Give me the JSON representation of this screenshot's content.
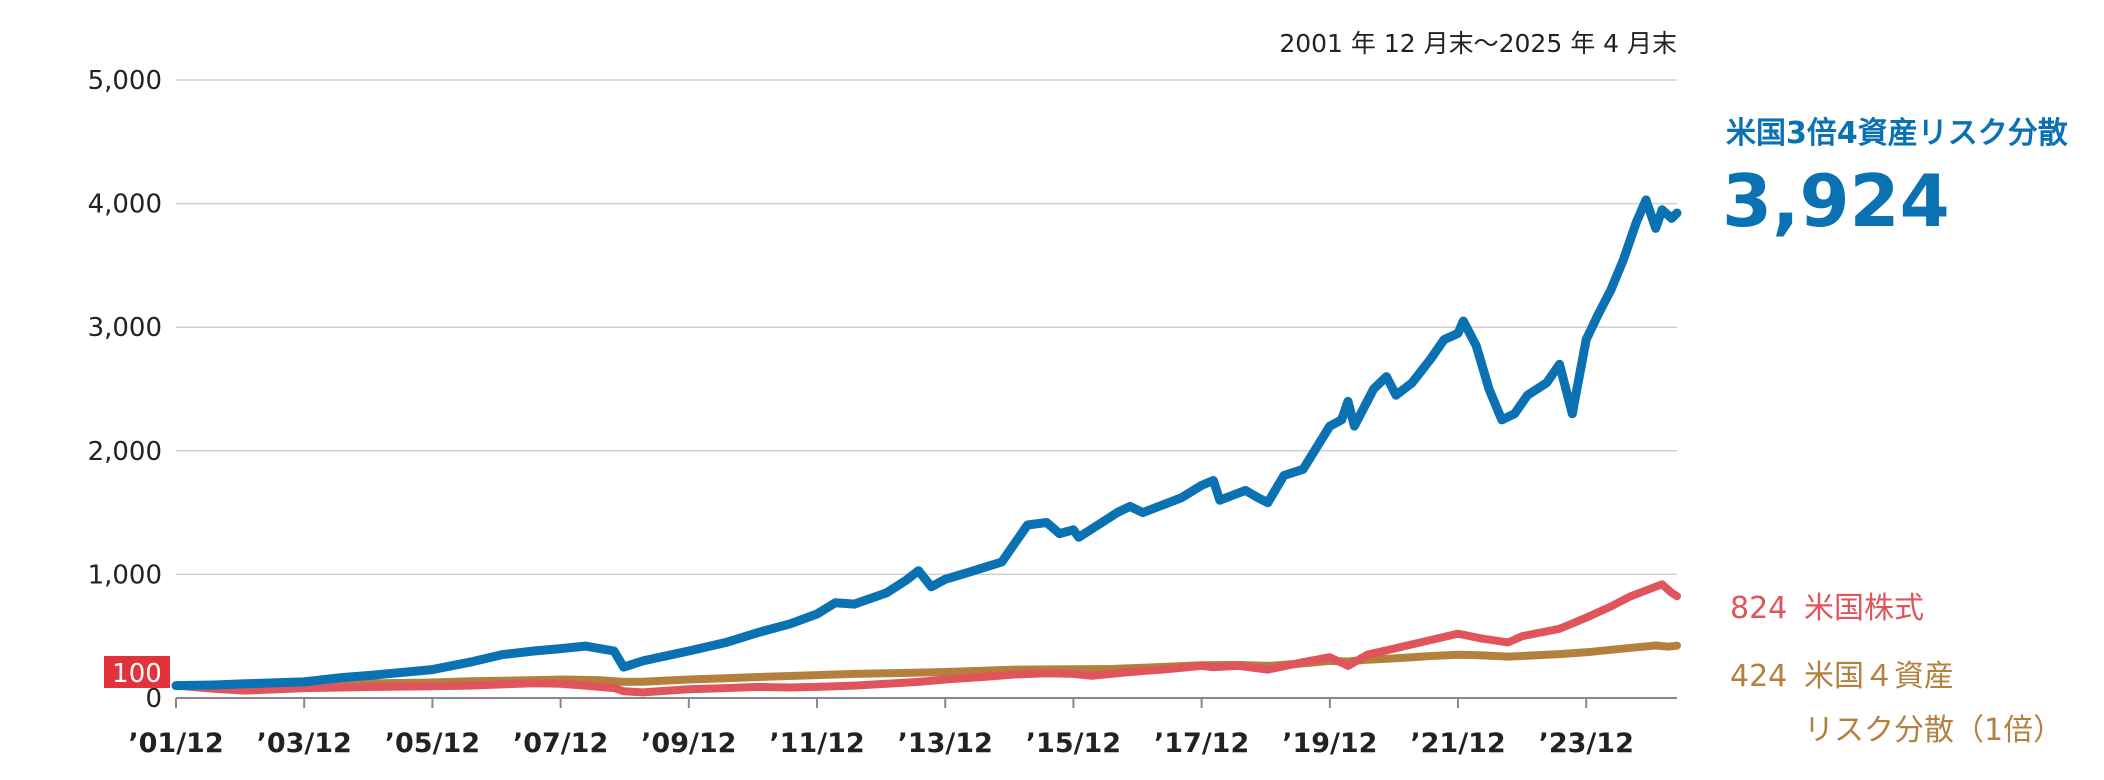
{
  "chart_data": {
    "type": "line",
    "period": "2001 年 12 月末～2025 年 4 月末",
    "ylim": [
      0,
      5000
    ],
    "yticks": [
      "0",
      "1,000",
      "2,000",
      "3,000",
      "4,000",
      "5,000"
    ],
    "ytick_values": [
      0,
      1000,
      2000,
      3000,
      4000,
      5000
    ],
    "base_label": "100",
    "xlim": [
      2001.917,
      2025.333
    ],
    "xticks": [
      "’01/12",
      "’03/12",
      "’05/12",
      "’07/12",
      "’09/12",
      "’11/12",
      "’13/12",
      "’15/12",
      "’17/12",
      "’19/12",
      "’21/12",
      "’23/12"
    ],
    "xtick_values": [
      2001.917,
      2003.917,
      2005.917,
      2007.917,
      2009.917,
      2011.917,
      2013.917,
      2015.917,
      2017.917,
      2019.917,
      2021.917,
      2023.917
    ],
    "series": [
      {
        "name": "米国3倍4資産リスク分散",
        "final_label": "3,924",
        "color": "#0a71b3",
        "points": [
          [
            2001.917,
            100
          ],
          [
            2002.5,
            105
          ],
          [
            2003.0,
            115
          ],
          [
            2003.917,
            130
          ],
          [
            2004.5,
            165
          ],
          [
            2005.0,
            185
          ],
          [
            2005.917,
            230
          ],
          [
            2006.5,
            290
          ],
          [
            2007.0,
            350
          ],
          [
            2007.5,
            380
          ],
          [
            2007.917,
            400
          ],
          [
            2008.3,
            420
          ],
          [
            2008.75,
            380
          ],
          [
            2008.9,
            250
          ],
          [
            2009.2,
            300
          ],
          [
            2009.917,
            380
          ],
          [
            2010.5,
            450
          ],
          [
            2011.0,
            530
          ],
          [
            2011.5,
            600
          ],
          [
            2011.917,
            680
          ],
          [
            2012.2,
            770
          ],
          [
            2012.5,
            760
          ],
          [
            2013.0,
            850
          ],
          [
            2013.3,
            950
          ],
          [
            2013.5,
            1030
          ],
          [
            2013.7,
            900
          ],
          [
            2013.917,
            960
          ],
          [
            2014.3,
            1020
          ],
          [
            2014.8,
            1100
          ],
          [
            2015.0,
            1250
          ],
          [
            2015.2,
            1400
          ],
          [
            2015.5,
            1420
          ],
          [
            2015.7,
            1330
          ],
          [
            2015.917,
            1360
          ],
          [
            2016.0,
            1300
          ],
          [
            2016.3,
            1400
          ],
          [
            2016.6,
            1500
          ],
          [
            2016.8,
            1550
          ],
          [
            2017.0,
            1500
          ],
          [
            2017.3,
            1560
          ],
          [
            2017.6,
            1620
          ],
          [
            2017.917,
            1720
          ],
          [
            2018.1,
            1760
          ],
          [
            2018.2,
            1600
          ],
          [
            2018.6,
            1680
          ],
          [
            2018.8,
            1620
          ],
          [
            2018.95,
            1580
          ],
          [
            2019.2,
            1800
          ],
          [
            2019.5,
            1850
          ],
          [
            2019.917,
            2200
          ],
          [
            2020.1,
            2250
          ],
          [
            2020.2,
            2400
          ],
          [
            2020.3,
            2200
          ],
          [
            2020.6,
            2500
          ],
          [
            2020.8,
            2600
          ],
          [
            2020.95,
            2450
          ],
          [
            2021.2,
            2550
          ],
          [
            2021.5,
            2750
          ],
          [
            2021.7,
            2900
          ],
          [
            2021.917,
            2950
          ],
          [
            2022.0,
            3050
          ],
          [
            2022.2,
            2850
          ],
          [
            2022.4,
            2500
          ],
          [
            2022.6,
            2250
          ],
          [
            2022.8,
            2300
          ],
          [
            2023.0,
            2450
          ],
          [
            2023.3,
            2550
          ],
          [
            2023.5,
            2700
          ],
          [
            2023.7,
            2300
          ],
          [
            2023.917,
            2900
          ],
          [
            2024.1,
            3100
          ],
          [
            2024.3,
            3300
          ],
          [
            2024.5,
            3550
          ],
          [
            2024.7,
            3850
          ],
          [
            2024.85,
            4030
          ],
          [
            2025.0,
            3800
          ],
          [
            2025.1,
            3950
          ],
          [
            2025.25,
            3880
          ],
          [
            2025.333,
            3924
          ]
        ]
      },
      {
        "name": "米国株式",
        "final_label": "824",
        "color": "#e0555b",
        "points": [
          [
            2001.917,
            100
          ],
          [
            2002.5,
            75
          ],
          [
            2003.0,
            60
          ],
          [
            2003.917,
            80
          ],
          [
            2004.5,
            85
          ],
          [
            2005.0,
            90
          ],
          [
            2005.917,
            95
          ],
          [
            2006.5,
            100
          ],
          [
            2007.0,
            110
          ],
          [
            2007.5,
            120
          ],
          [
            2007.917,
            115
          ],
          [
            2008.3,
            100
          ],
          [
            2008.75,
            80
          ],
          [
            2008.9,
            55
          ],
          [
            2009.2,
            45
          ],
          [
            2009.917,
            70
          ],
          [
            2010.5,
            80
          ],
          [
            2011.0,
            90
          ],
          [
            2011.5,
            85
          ],
          [
            2011.917,
            90
          ],
          [
            2012.5,
            100
          ],
          [
            2013.0,
            115
          ],
          [
            2013.5,
            130
          ],
          [
            2013.917,
            150
          ],
          [
            2014.5,
            170
          ],
          [
            2015.0,
            190
          ],
          [
            2015.5,
            200
          ],
          [
            2015.917,
            195
          ],
          [
            2016.2,
            180
          ],
          [
            2016.8,
            210
          ],
          [
            2017.3,
            230
          ],
          [
            2017.917,
            260
          ],
          [
            2018.1,
            250
          ],
          [
            2018.5,
            260
          ],
          [
            2018.95,
            230
          ],
          [
            2019.5,
            290
          ],
          [
            2019.917,
            330
          ],
          [
            2020.2,
            260
          ],
          [
            2020.5,
            350
          ],
          [
            2020.917,
            400
          ],
          [
            2021.5,
            470
          ],
          [
            2021.917,
            520
          ],
          [
            2022.3,
            480
          ],
          [
            2022.7,
            450
          ],
          [
            2022.917,
            500
          ],
          [
            2023.5,
            560
          ],
          [
            2023.917,
            650
          ],
          [
            2024.3,
            740
          ],
          [
            2024.6,
            820
          ],
          [
            2024.9,
            880
          ],
          [
            2025.1,
            920
          ],
          [
            2025.25,
            850
          ],
          [
            2025.333,
            824
          ]
        ]
      },
      {
        "name": "米国４資産リスク分散（1倍）",
        "name_lines": [
          "米国４資産",
          "リスク分散（1倍）"
        ],
        "final_label": "424",
        "color": "#b3813d",
        "points": [
          [
            2001.917,
            100
          ],
          [
            2002.5,
            102
          ],
          [
            2003.0,
            104
          ],
          [
            2003.917,
            110
          ],
          [
            2004.5,
            115
          ],
          [
            2005.0,
            118
          ],
          [
            2005.917,
            125
          ],
          [
            2006.5,
            135
          ],
          [
            2007.0,
            140
          ],
          [
            2007.5,
            145
          ],
          [
            2007.917,
            150
          ],
          [
            2008.5,
            145
          ],
          [
            2008.9,
            130
          ],
          [
            2009.2,
            132
          ],
          [
            2009.917,
            150
          ],
          [
            2010.5,
            160
          ],
          [
            2011.0,
            170
          ],
          [
            2011.917,
            185
          ],
          [
            2012.5,
            195
          ],
          [
            2013.0,
            200
          ],
          [
            2013.917,
            210
          ],
          [
            2014.5,
            220
          ],
          [
            2015.0,
            230
          ],
          [
            2015.917,
            232
          ],
          [
            2016.5,
            235
          ],
          [
            2017.0,
            245
          ],
          [
            2017.917,
            265
          ],
          [
            2018.5,
            268
          ],
          [
            2018.95,
            260
          ],
          [
            2019.5,
            280
          ],
          [
            2019.917,
            300
          ],
          [
            2020.2,
            295
          ],
          [
            2020.5,
            310
          ],
          [
            2020.917,
            320
          ],
          [
            2021.5,
            340
          ],
          [
            2021.917,
            350
          ],
          [
            2022.3,
            345
          ],
          [
            2022.7,
            335
          ],
          [
            2022.917,
            340
          ],
          [
            2023.5,
            355
          ],
          [
            2023.917,
            370
          ],
          [
            2024.3,
            390
          ],
          [
            2024.7,
            410
          ],
          [
            2025.0,
            425
          ],
          [
            2025.2,
            415
          ],
          [
            2025.333,
            424
          ]
        ]
      }
    ]
  }
}
